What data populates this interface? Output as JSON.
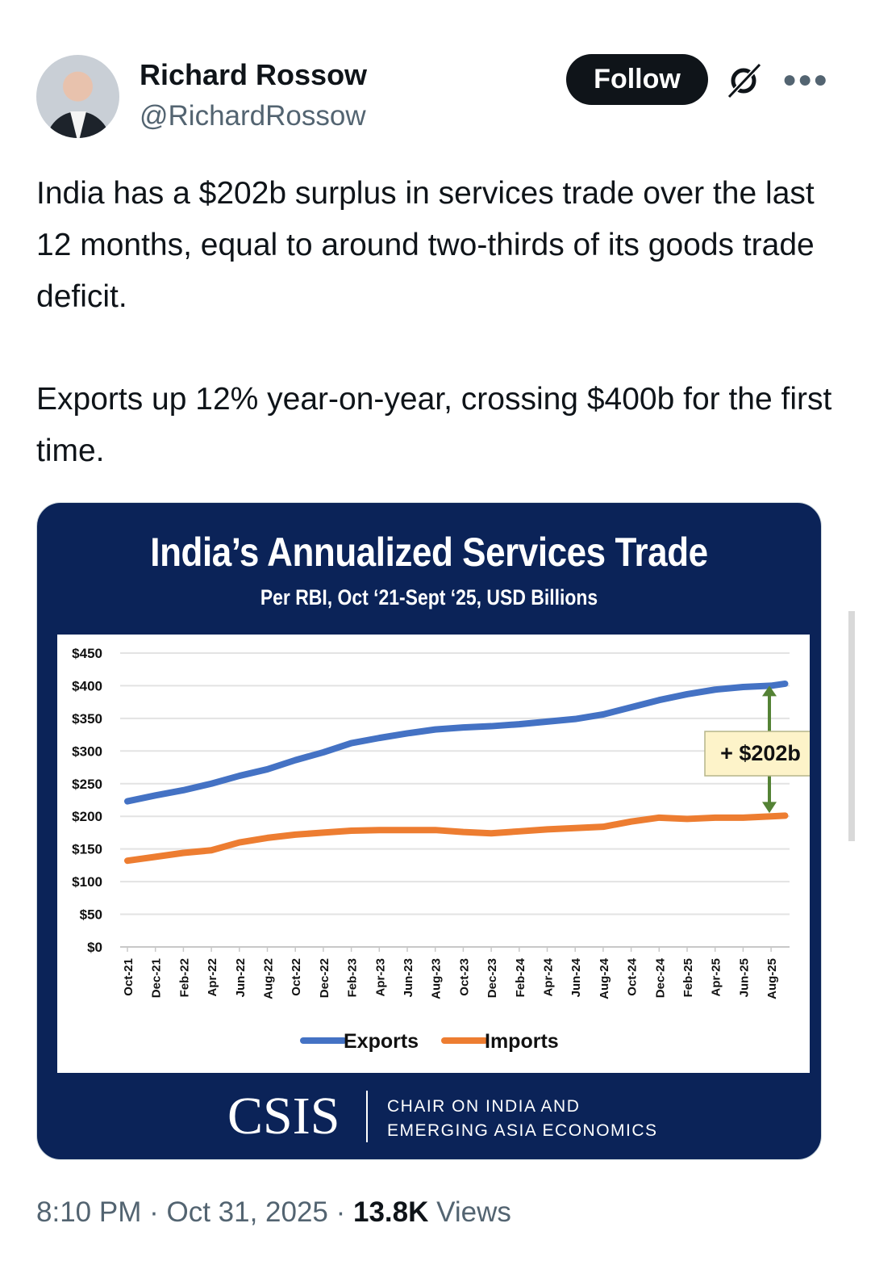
{
  "author": {
    "name": "Richard Rossow",
    "handle": "@RichardRossow"
  },
  "actions": {
    "follow_label": "Follow",
    "grok_icon": "grok-icon",
    "more_icon": "more-icon"
  },
  "tweet": {
    "paragraphs": [
      "India has a $202b surplus in services trade over the last 12 months, equal to around two-thirds of its goods trade deficit.",
      "Exports up 12% year-on-year, crossing $400b for the first time."
    ]
  },
  "card": {
    "title": "India’s Annualized Services Trade",
    "subtitle": "Per RBI, Oct ‘21-Sept ‘25, USD Billions",
    "brand": "CSIS",
    "org_line1": "CHAIR ON INDIA AND",
    "org_line2": "EMERGING ASIA ECONOMICS"
  },
  "chart_data": {
    "type": "line",
    "title": "India’s Annualized Services Trade",
    "subtitle": "Per RBI, Oct ‘21-Sept ‘25, USD Billions",
    "x_ticks": [
      "Oct-21",
      "Dec-21",
      "Feb-22",
      "Apr-22",
      "Jun-22",
      "Aug-22",
      "Oct-22",
      "Dec-22",
      "Feb-23",
      "Apr-23",
      "Jun-23",
      "Aug-23",
      "Oct-23",
      "Dec-23",
      "Feb-24",
      "Apr-24",
      "Jun-24",
      "Aug-24",
      "Oct-24",
      "Dec-24",
      "Feb-25",
      "Apr-25",
      "Jun-25",
      "Aug-25"
    ],
    "x_months_since_oct21": [
      0,
      2,
      4,
      6,
      8,
      10,
      12,
      14,
      16,
      18,
      20,
      22,
      24,
      26,
      28,
      30,
      32,
      34,
      36,
      38,
      40,
      42,
      44,
      46,
      47
    ],
    "y_ticks": [
      "$0",
      "$50",
      "$100",
      "$150",
      "$200",
      "$250",
      "$300",
      "$350",
      "$400",
      "$450"
    ],
    "ylim": [
      0,
      450
    ],
    "grid": true,
    "legend_position": "bottom",
    "series": [
      {
        "name": "Exports",
        "color": "#4472c4",
        "values": [
          223,
          232,
          240,
          250,
          262,
          272,
          286,
          298,
          312,
          320,
          327,
          333,
          336,
          338,
          341,
          345,
          349,
          356,
          367,
          378,
          387,
          394,
          398,
          400,
          403
        ]
      },
      {
        "name": "Imports",
        "color": "#ed7d31",
        "values": [
          132,
          138,
          144,
          148,
          160,
          167,
          172,
          175,
          178,
          179,
          179,
          179,
          176,
          174,
          177,
          180,
          182,
          184,
          192,
          198,
          196,
          198,
          198,
          200,
          201
        ]
      }
    ],
    "annotation": {
      "label": "+ $202b",
      "color": "#548235",
      "box_color": "#fdf3c9"
    }
  },
  "meta": {
    "time": "8:10 PM",
    "sep": " · ",
    "date": "Oct 31, 2025",
    "views_count": "13.8K",
    "views_label": " Views"
  }
}
